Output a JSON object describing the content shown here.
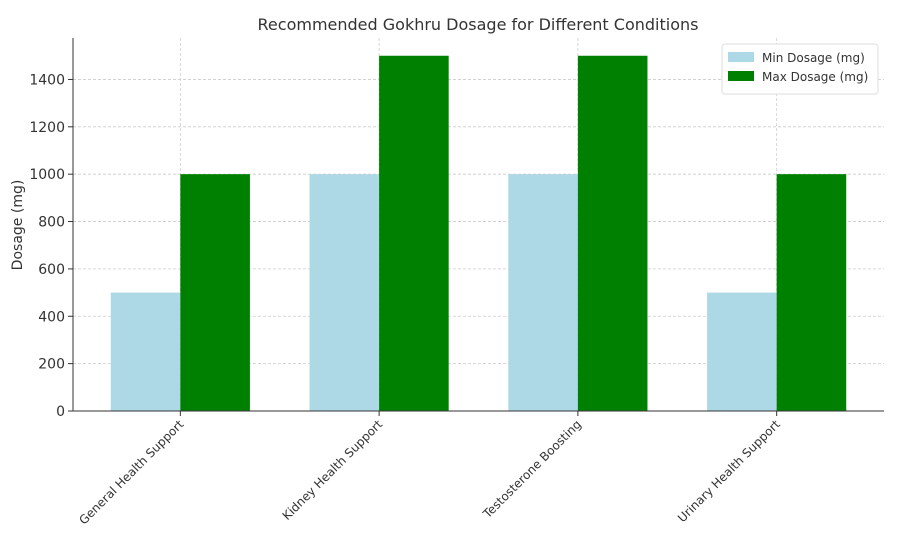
{
  "chart_data": {
    "type": "bar",
    "title": "Recommended Gokhru Dosage for Different Conditions",
    "y_label": "Dosage (mg)",
    "categories": [
      "General Health Support",
      "Kidney Health Support",
      "Testosterone Boosting",
      "Urinary Health Support"
    ],
    "series": [
      {
        "name": "Min Dosage (mg)",
        "color": "#add8e6",
        "values": [
          500,
          1000,
          1000,
          500
        ]
      },
      {
        "name": "Max Dosage (mg)",
        "color": "#008000",
        "values": [
          1000,
          1500,
          1500,
          1000
        ]
      }
    ],
    "ylim": [
      0,
      1575
    ],
    "yticks": [
      0,
      200,
      400,
      600,
      800,
      1000,
      1200,
      1400
    ],
    "grid": true,
    "legend": "upper-right"
  }
}
